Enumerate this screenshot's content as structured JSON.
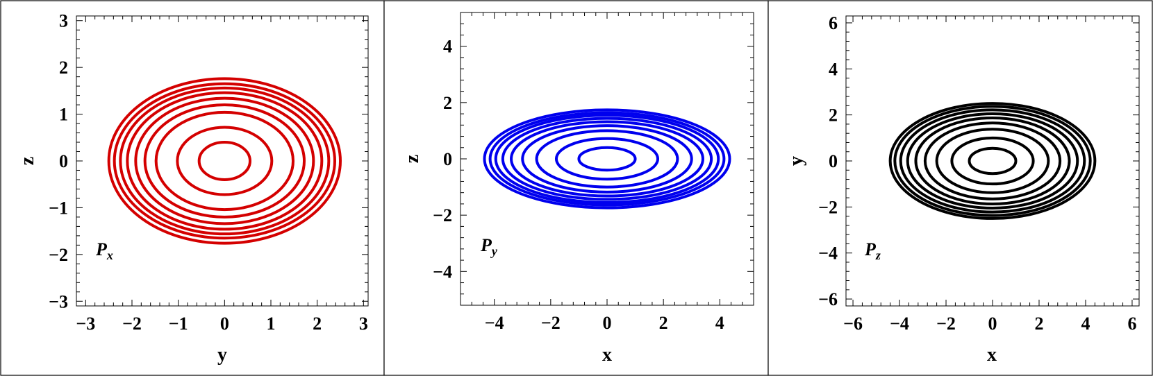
{
  "chart_data": [
    {
      "type": "contour",
      "panel_label": {
        "main": "P",
        "sub": "x"
      },
      "xlabel": "y",
      "ylabel": "z",
      "xlim": [
        -3.2,
        3.1
      ],
      "ylim": [
        -3.1,
        3.1
      ],
      "xticks": [
        -3,
        -2,
        -1,
        0,
        1,
        2,
        3
      ],
      "yticks": [
        -3,
        -2,
        -1,
        0,
        1,
        2,
        3
      ],
      "xtick_labels": [
        "−3",
        "−2",
        "−1",
        "0",
        "1",
        "2",
        "3"
      ],
      "ytick_labels": [
        "−3",
        "−2",
        "−1",
        "0",
        "1",
        "2",
        "3"
      ],
      "color": "#d40000",
      "center": [
        0,
        0
      ],
      "contours": [
        {
          "rx": 0.55,
          "ry": 0.4
        },
        {
          "rx": 1.02,
          "ry": 0.72
        },
        {
          "rx": 1.48,
          "ry": 1.04
        },
        {
          "rx": 1.72,
          "ry": 1.2
        },
        {
          "rx": 1.92,
          "ry": 1.34
        },
        {
          "rx": 2.1,
          "ry": 1.46
        },
        {
          "rx": 2.25,
          "ry": 1.56
        },
        {
          "rx": 2.38,
          "ry": 1.65
        },
        {
          "rx": 2.5,
          "ry": 1.76
        }
      ]
    },
    {
      "type": "contour",
      "panel_label": {
        "main": "P",
        "sub": "y"
      },
      "xlabel": "x",
      "ylabel": "z",
      "xlim": [
        -5.2,
        5.2
      ],
      "ylim": [
        -5.2,
        5.2
      ],
      "xticks": [
        -4,
        -2,
        0,
        2,
        4
      ],
      "yticks": [
        -4,
        -2,
        0,
        2,
        4
      ],
      "xtick_labels": [
        "−4",
        "−2",
        "0",
        "2",
        "4"
      ],
      "ytick_labels": [
        "−4",
        "−2",
        "0",
        "2",
        "4"
      ],
      "color": "#0000ee",
      "center": [
        0,
        0
      ],
      "contours": [
        {
          "rx": 1.0,
          "ry": 0.4
        },
        {
          "rx": 1.8,
          "ry": 0.72
        },
        {
          "rx": 2.5,
          "ry": 1.0
        },
        {
          "rx": 3.0,
          "ry": 1.18
        },
        {
          "rx": 3.4,
          "ry": 1.32
        },
        {
          "rx": 3.7,
          "ry": 1.44
        },
        {
          "rx": 3.95,
          "ry": 1.55
        },
        {
          "rx": 4.15,
          "ry": 1.64
        },
        {
          "rx": 4.35,
          "ry": 1.74
        }
      ]
    },
    {
      "type": "contour",
      "panel_label": {
        "main": "P",
        "sub": "z"
      },
      "xlabel": "x",
      "ylabel": "y",
      "xlim": [
        -6.3,
        6.3
      ],
      "ylim": [
        -6.3,
        6.3
      ],
      "xticks": [
        -6,
        -4,
        -2,
        0,
        2,
        4,
        6
      ],
      "yticks": [
        -6,
        -4,
        -2,
        0,
        2,
        4,
        6
      ],
      "xtick_labels": [
        "−6",
        "−4",
        "−2",
        "0",
        "2",
        "4",
        "6"
      ],
      "ytick_labels": [
        "−6",
        "−4",
        "−2",
        "0",
        "2",
        "4",
        "6"
      ],
      "color": "#000000",
      "center": [
        0,
        0
      ],
      "contours": [
        {
          "rx": 1.0,
          "ry": 0.55
        },
        {
          "rx": 1.75,
          "ry": 1.0
        },
        {
          "rx": 2.4,
          "ry": 1.38
        },
        {
          "rx": 2.9,
          "ry": 1.65
        },
        {
          "rx": 3.3,
          "ry": 1.87
        },
        {
          "rx": 3.65,
          "ry": 2.05
        },
        {
          "rx": 3.95,
          "ry": 2.22
        },
        {
          "rx": 4.2,
          "ry": 2.37
        },
        {
          "rx": 4.4,
          "ry": 2.5
        }
      ]
    }
  ]
}
